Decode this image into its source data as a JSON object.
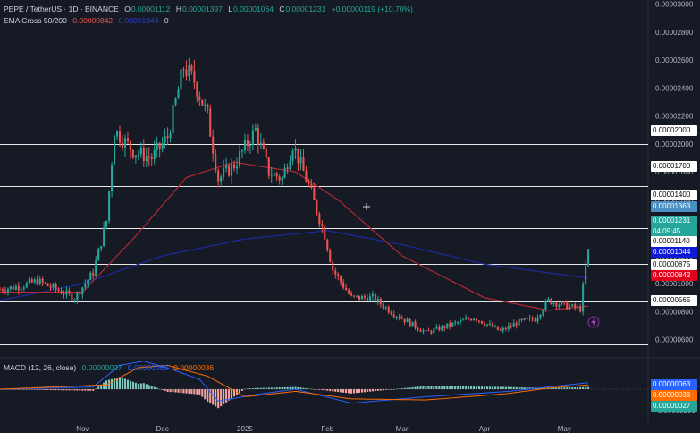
{
  "header": {
    "symbol": "PEPE / TetherUS · 1D · BINANCE",
    "o_label": "O",
    "o": "0.00001112",
    "h_label": "H",
    "h": "0.00001397",
    "l_label": "L",
    "l": "0.00001064",
    "c_label": "C",
    "c": "0.00001231",
    "change": "+0.00000119 (+10.70%)"
  },
  "ema_legend": {
    "name": "EMA Cross 50/200",
    "ema50": "0.00000842",
    "ema200": "0.00001044",
    "extra": "0"
  },
  "macd_legend": {
    "name": "MACD (12, 26, close)",
    "hist": "0.00000027",
    "macd": "0.00000063",
    "signal": "0.00000036"
  },
  "colors": {
    "up": "#26a69a",
    "down": "#ef5350",
    "ema50": "#b22833",
    "ema200": "#1a2a9e",
    "macd": "#2962ff",
    "signal": "#ff6d00",
    "bg": "#161a25"
  },
  "price_scale": {
    "ticks": [
      "0.00003000",
      "0.00002800",
      "0.00002600",
      "0.00002400",
      "0.00002200",
      "0.00002000",
      "0.00001800",
      "0.00001600",
      "0.00001400",
      "0.00001200",
      "0.00001000",
      "0.00000800",
      "0.00000600"
    ],
    "horizontal_levels": [
      "0.00002000",
      "0.00001700",
      "0.00001400",
      "0.00001140",
      "0.00000875",
      "0.00000565"
    ],
    "tags": {
      "l2000": "0.00002000",
      "l1700": "0.00001700",
      "l1400": "0.00001400",
      "l1363": "0.00001363",
      "last": "0.00001231",
      "countdown": "04:09:45",
      "l1140": "0.00001140",
      "ema200": "0.00001044",
      "l875": "0.00000875",
      "ema50": "0.00000842",
      "l565": "0.00000565"
    }
  },
  "macd_scale": {
    "tag_macd": "0.00000063",
    "tag_signal": "0.00000036",
    "tag_hist": "0.00000027",
    "tick_low": "-0.00000200"
  },
  "time_axis": [
    "Nov",
    "Dec",
    "2025",
    "Feb",
    "Mar",
    "Apr",
    "May"
  ],
  "chart_data": {
    "type": "candlestick",
    "x_start": "2024-10-01",
    "x_end": "2025-05-14",
    "ylim": [
      4.7e-06,
      3.03e-05
    ],
    "anchor_prices": [
      [
        "2024-10-01",
        9.6e-06
      ],
      [
        "2024-10-08",
        9.8e-06
      ],
      [
        "2024-10-15",
        1.02e-05
      ],
      [
        "2024-10-22",
        9.6e-06
      ],
      [
        "2024-10-29",
        9e-06
      ],
      [
        "2024-11-05",
        1.08e-05
      ],
      [
        "2024-11-10",
        1.45e-05
      ],
      [
        "2024-11-13",
        2.1e-05
      ],
      [
        "2024-11-20",
        1.95e-05
      ],
      [
        "2024-11-27",
        1.9e-05
      ],
      [
        "2024-12-03",
        2.05e-05
      ],
      [
        "2024-12-09",
        2.55e-05
      ],
      [
        "2024-12-13",
        2.45e-05
      ],
      [
        "2024-12-18",
        2.2e-05
      ],
      [
        "2024-12-22",
        1.75e-05
      ],
      [
        "2024-12-28",
        1.85e-05
      ],
      [
        "2025-01-05",
        2.1e-05
      ],
      [
        "2025-01-10",
        1.8e-05
      ],
      [
        "2025-01-15",
        1.75e-05
      ],
      [
        "2025-01-19",
        2e-05
      ],
      [
        "2025-01-25",
        1.7e-05
      ],
      [
        "2025-01-31",
        1.35e-05
      ],
      [
        "2025-02-03",
        1.1e-05
      ],
      [
        "2025-02-10",
        9e-06
      ],
      [
        "2025-02-18",
        9e-06
      ],
      [
        "2025-02-25",
        8e-06
      ],
      [
        "2025-03-03",
        7.3e-06
      ],
      [
        "2025-03-10",
        6.5e-06
      ],
      [
        "2025-03-20",
        7.1e-06
      ],
      [
        "2025-03-28",
        7.6e-06
      ],
      [
        "2025-04-07",
        6.6e-06
      ],
      [
        "2025-04-13",
        7.2e-06
      ],
      [
        "2025-04-20",
        7.5e-06
      ],
      [
        "2025-04-25",
        8.8e-06
      ],
      [
        "2025-05-02",
        8.4e-06
      ],
      [
        "2025-05-07",
        8.2e-06
      ],
      [
        "2025-05-09",
        1.12e-05
      ],
      [
        "2025-05-10",
        1.23e-05
      ]
    ],
    "ema50": [
      [
        "2024-10-01",
        9.4e-06
      ],
      [
        "2024-11-01",
        9.4e-06
      ],
      [
        "2024-11-20",
        1.32e-05
      ],
      [
        "2024-12-10",
        1.76e-05
      ],
      [
        "2024-12-28",
        1.87e-05
      ],
      [
        "2025-01-20",
        1.8e-05
      ],
      [
        "2025-02-05",
        1.6e-05
      ],
      [
        "2025-03-01",
        1.2e-05
      ],
      [
        "2025-04-01",
        9e-06
      ],
      [
        "2025-04-25",
        8.1e-06
      ],
      [
        "2025-05-10",
        8.4e-06
      ]
    ],
    "ema200": [
      [
        "2024-10-01",
        8.8e-06
      ],
      [
        "2024-11-01",
        1e-05
      ],
      [
        "2024-12-01",
        1.2e-05
      ],
      [
        "2025-01-01",
        1.32e-05
      ],
      [
        "2025-02-01",
        1.38e-05
      ],
      [
        "2025-03-01",
        1.28e-05
      ],
      [
        "2025-04-01",
        1.14e-05
      ],
      [
        "2025-05-10",
        1.04e-05
      ]
    ],
    "macd_ylim": [
      -2.9e-06,
      2.9e-06
    ],
    "macd_line": [
      [
        "2024-10-01",
        0.0
      ],
      [
        "2024-11-05",
        2e-07
      ],
      [
        "2024-11-15",
        2.2e-06
      ],
      [
        "2024-11-24",
        2.6e-06
      ],
      [
        "2024-12-05",
        1.8e-06
      ],
      [
        "2024-12-15",
        9e-07
      ],
      [
        "2024-12-22",
        -1.1e-06
      ],
      [
        "2025-01-05",
        -5e-07
      ],
      [
        "2025-01-20",
        0.0
      ],
      [
        "2025-02-10",
        -1.3e-06
      ],
      [
        "2025-03-10",
        -7e-07
      ],
      [
        "2025-04-10",
        -2e-07
      ],
      [
        "2025-04-25",
        2e-07
      ],
      [
        "2025-05-10",
        6e-07
      ]
    ],
    "signal_line": [
      [
        "2024-10-01",
        0.0
      ],
      [
        "2024-11-10",
        4e-07
      ],
      [
        "2024-11-22",
        2e-06
      ],
      [
        "2024-12-03",
        2.2e-06
      ],
      [
        "2024-12-18",
        1.2e-06
      ],
      [
        "2025-01-01",
        -7e-07
      ],
      [
        "2025-01-20",
        -2e-07
      ],
      [
        "2025-02-10",
        -9e-07
      ],
      [
        "2025-03-10",
        -1e-06
      ],
      [
        "2025-04-10",
        -4e-07
      ],
      [
        "2025-04-25",
        1e-07
      ],
      [
        "2025-05-10",
        4e-07
      ]
    ]
  }
}
